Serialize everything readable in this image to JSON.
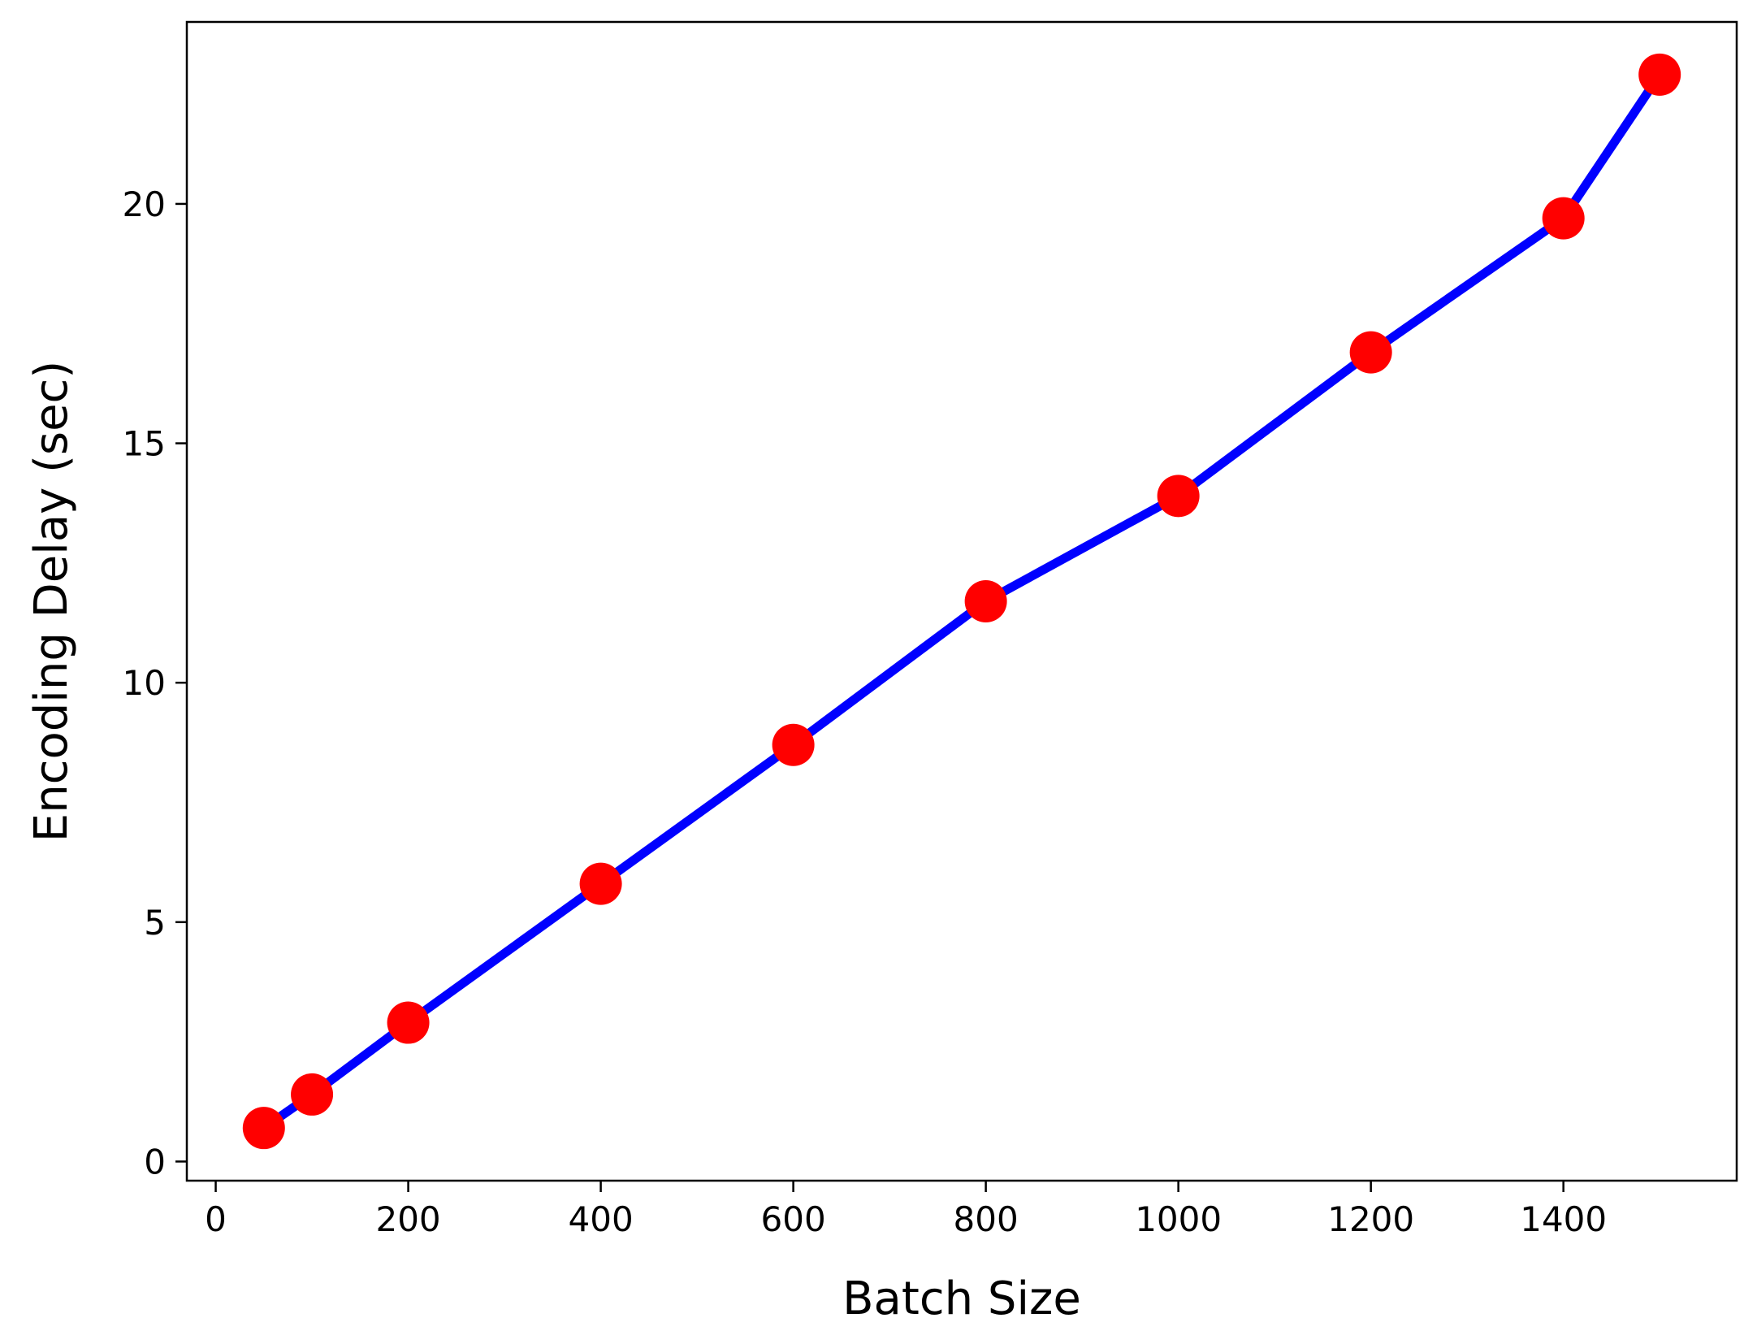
{
  "chart_data": {
    "type": "line",
    "title": "",
    "xlabel": "Batch Size",
    "ylabel": "Encoding Delay (sec)",
    "xlim": [
      -30,
      1580
    ],
    "ylim": [
      -0.4,
      23.8
    ],
    "xticks": [
      0,
      200,
      400,
      600,
      800,
      1000,
      1200,
      1400
    ],
    "yticks": [
      0,
      5,
      10,
      15,
      20
    ],
    "grid": false,
    "legend": "none",
    "series": [
      {
        "x": [
          50,
          100,
          200,
          400,
          600,
          800,
          1000,
          1200,
          1400,
          1500
        ],
        "y": [
          0.7,
          1.4,
          2.9,
          5.8,
          8.7,
          11.7,
          13.9,
          16.9,
          19.7,
          22.7
        ],
        "line_color": "#0000ff",
        "marker_color": "#ff0000",
        "marker": "circle"
      }
    ]
  }
}
